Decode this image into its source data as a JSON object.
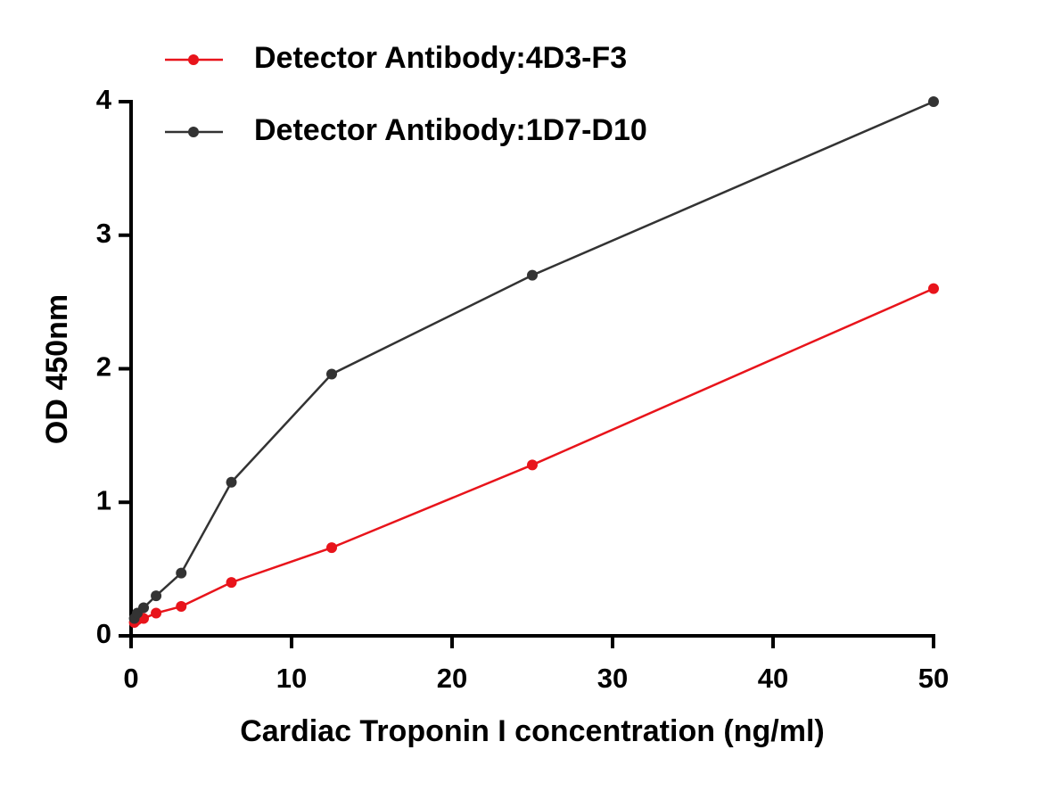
{
  "chart_data": {
    "type": "line",
    "x_label": "Cardiac Troponin I concentration (ng/ml)",
    "y_label": "OD 450nm",
    "xlim": [
      0,
      50
    ],
    "xticks": [
      0,
      10,
      20,
      30,
      40,
      50
    ],
    "ylim": [
      0,
      4
    ],
    "yticks": [
      0,
      1,
      2,
      3,
      4
    ],
    "legend": "top-left",
    "series": [
      {
        "name": "Detector Antibody:4D3-F3",
        "color": "#e8141b",
        "x": [
          0.2,
          0.39,
          0.78,
          1.56,
          3.125,
          6.25,
          12.5,
          25,
          50
        ],
        "values": [
          0.1,
          0.12,
          0.13,
          0.17,
          0.22,
          0.4,
          0.66,
          1.28,
          2.6
        ]
      },
      {
        "name": "Detector Antibody:1D7-D10",
        "color": "#333333",
        "x": [
          0.2,
          0.39,
          0.78,
          1.56,
          3.125,
          6.25,
          12.5,
          25,
          50
        ],
        "values": [
          0.13,
          0.17,
          0.21,
          0.3,
          0.47,
          1.15,
          1.96,
          2.7,
          4.0
        ]
      }
    ]
  }
}
